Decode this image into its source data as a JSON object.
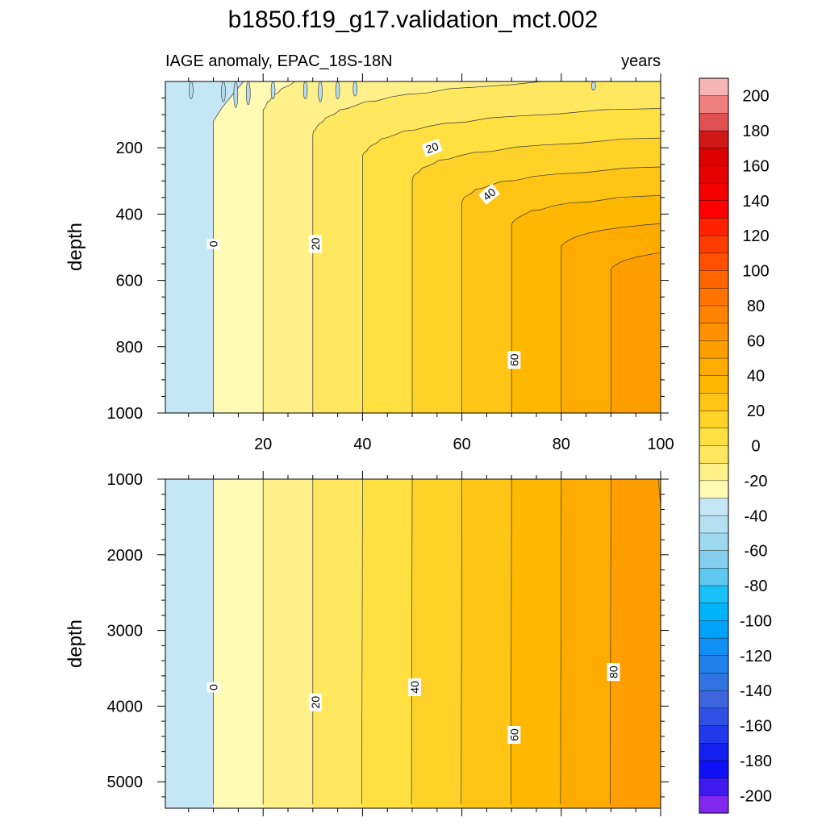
{
  "title": "b1850.f19_g17.validation_mct.002",
  "chart_data": [
    {
      "type": "contour",
      "panel": "upper",
      "left_label": "IAGE anomaly, EPAC_18S-18N",
      "right_label": "years",
      "xlabel": "",
      "ylabel": "depth",
      "xlim": [
        0,
        100
      ],
      "ylim": [
        1000,
        0
      ],
      "x_ticks": [
        20,
        40,
        60,
        80,
        100
      ],
      "y_ticks": [
        200,
        400,
        600,
        800,
        1000
      ],
      "contour_levels": [
        0,
        10,
        20,
        30,
        40,
        50,
        60,
        70,
        80,
        90
      ],
      "contour_labels": [
        {
          "text": "0",
          "x": 10,
          "y": 490
        },
        {
          "text": "20",
          "x": 30.5,
          "y": 490
        },
        {
          "text": "20",
          "x": 54,
          "y": 200
        },
        {
          "text": "40",
          "x": 65.5,
          "y": 340
        },
        {
          "text": "60",
          "x": 70.5,
          "y": 840
        }
      ]
    },
    {
      "type": "contour",
      "panel": "lower",
      "xlabel": "",
      "ylabel": "depth",
      "xlim": [
        0,
        100
      ],
      "ylim": [
        5350,
        1000
      ],
      "y_ticks": [
        1000,
        2000,
        3000,
        4000,
        5000
      ],
      "contour_levels": [
        0,
        10,
        20,
        30,
        40,
        50,
        60,
        70,
        80,
        90
      ],
      "contour_labels": [
        {
          "text": "0",
          "x": 10,
          "y": 3750
        },
        {
          "text": "20",
          "x": 30.5,
          "y": 3950
        },
        {
          "text": "40",
          "x": 50.5,
          "y": 3750
        },
        {
          "text": "60",
          "x": 70.5,
          "y": 4380
        },
        {
          "text": "80",
          "x": 90.5,
          "y": 3550
        }
      ]
    }
  ],
  "colorbar": {
    "labels": [
      "200",
      "180",
      "160",
      "140",
      "120",
      "100",
      "80",
      "60",
      "40",
      "20",
      "0",
      "-20",
      "-40",
      "-60",
      "-80",
      "-100",
      "-120",
      "-140",
      "-160",
      "-180",
      "-200"
    ],
    "colors": [
      "#f8b4b4",
      "#f08080",
      "#e05050",
      "#d01818",
      "#dc0000",
      "#e80000",
      "#f40000",
      "#ff0000",
      "#ff2200",
      "#ff3c00",
      "#ff5000",
      "#ff6600",
      "#ff7400",
      "#ff8200",
      "#ff9000",
      "#ff9e00",
      "#ffab00",
      "#ffb800",
      "#ffc414",
      "#ffd22a",
      "#ffe040",
      "#ffe860",
      "#fff08a",
      "#fffab4",
      "#c5e6f5",
      "#b4e0f2",
      "#9ed8ef",
      "#85cef0",
      "#5ec8f0",
      "#18c2f8",
      "#00b4fa",
      "#00a2fa",
      "#1090f4",
      "#2080ec",
      "#3074e4",
      "#3c64dc",
      "#3050e4",
      "#2238ec",
      "#1420f0",
      "#1010f8",
      "#4018f0",
      "#8028f0"
    ]
  }
}
